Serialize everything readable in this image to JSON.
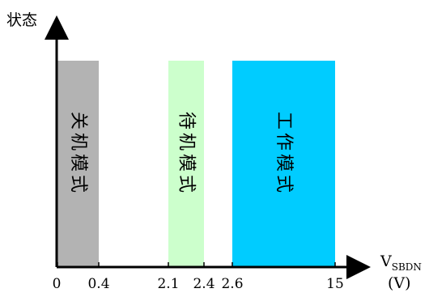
{
  "chart_data": {
    "type": "bar",
    "ylabel": "状态",
    "xlabel": {
      "main": "V",
      "sub": "SBDN",
      "unit": "(V)"
    },
    "x_ticks": [
      {
        "label": "0",
        "value": 0
      },
      {
        "label": "0.4",
        "value": 0.4
      },
      {
        "label": "2.1",
        "value": 2.1
      },
      {
        "label": "2.4",
        "value": 2.4
      },
      {
        "label": "2.6",
        "value": 2.6
      },
      {
        "label": "15",
        "value": 15
      }
    ],
    "bands": [
      {
        "label": "关机模式",
        "from": 0,
        "to": 0.4,
        "color": "#b3b3b3"
      },
      {
        "label": "待机模式",
        "from": 2.1,
        "to": 2.4,
        "color": "#ccffcc"
      },
      {
        "label": "工作模式",
        "from": 2.6,
        "to": 15,
        "color": "#00ccff"
      }
    ],
    "x_scale": "non-linear (categorical breakpoints)",
    "grid": false,
    "legend": "none"
  }
}
